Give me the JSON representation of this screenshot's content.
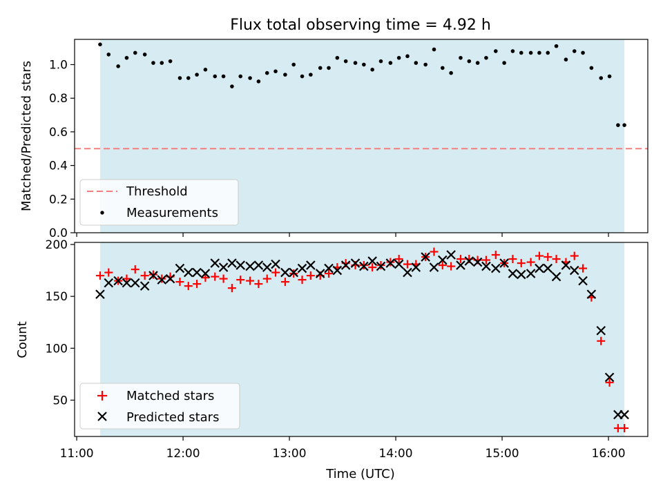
{
  "title": "Flux total observing time = 4.92 h",
  "chart_data": [
    {
      "type": "scatter",
      "ylabel": "Matched/Predicted stars",
      "ylim": [
        0,
        1.15
      ],
      "yticks": [
        "0.0",
        "0.2",
        "0.4",
        "0.6",
        "0.8",
        "1.0"
      ],
      "xlim": [
        10.98,
        16.37
      ],
      "shaded_span": [
        11.22,
        16.15
      ],
      "threshold": 0.5,
      "legend": {
        "position": "lower-left",
        "entries": [
          "Threshold",
          "Measurements"
        ]
      },
      "series": [
        {
          "name": "Measurements",
          "x": [
            11.22,
            11.3,
            11.39,
            11.47,
            11.55,
            11.64,
            11.72,
            11.8,
            11.88,
            11.97,
            12.05,
            12.13,
            12.21,
            12.3,
            12.38,
            12.46,
            12.54,
            12.63,
            12.71,
            12.79,
            12.87,
            12.96,
            13.04,
            13.12,
            13.2,
            13.29,
            13.37,
            13.45,
            13.53,
            13.62,
            13.7,
            13.78,
            13.86,
            13.95,
            14.03,
            14.11,
            14.19,
            14.28,
            14.36,
            14.44,
            14.52,
            14.61,
            14.69,
            14.77,
            14.85,
            14.94,
            15.02,
            15.1,
            15.18,
            15.27,
            15.35,
            15.43,
            15.51,
            15.6,
            15.68,
            15.76,
            15.84,
            15.93,
            16.01,
            16.09,
            16.15
          ],
          "y": [
            1.12,
            1.06,
            0.99,
            1.04,
            1.07,
            1.06,
            1.01,
            1.01,
            1.02,
            0.92,
            0.92,
            0.94,
            0.97,
            0.93,
            0.93,
            0.87,
            0.93,
            0.92,
            0.9,
            0.95,
            0.96,
            0.94,
            1.0,
            0.93,
            0.94,
            0.98,
            0.98,
            1.04,
            1.02,
            1.01,
            1.0,
            0.97,
            1.02,
            1.01,
            1.04,
            1.05,
            1.01,
            1.0,
            1.09,
            0.98,
            0.95,
            1.04,
            1.02,
            1.01,
            1.04,
            1.08,
            1.01,
            1.08,
            1.07,
            1.07,
            1.07,
            1.07,
            1.11,
            1.03,
            1.08,
            1.07,
            0.98,
            0.92,
            0.93,
            0.64,
            0.64
          ]
        }
      ]
    },
    {
      "type": "scatter",
      "ylabel": "Count",
      "xlabel": "Time (UTC)",
      "ylim": [
        15,
        202
      ],
      "yticks": [
        "50",
        "100",
        "150",
        "200"
      ],
      "xlim": [
        10.98,
        16.37
      ],
      "xticks": [
        "11:00",
        "12:00",
        "13:00",
        "14:00",
        "15:00",
        "16:00"
      ],
      "shaded_span": [
        11.22,
        16.15
      ],
      "legend": {
        "position": "lower-left",
        "entries": [
          "Matched stars",
          "Predicted stars"
        ]
      },
      "series": [
        {
          "name": "Matched stars",
          "marker": "plus",
          "x": [
            11.22,
            11.3,
            11.39,
            11.47,
            11.55,
            11.64,
            11.72,
            11.8,
            11.88,
            11.97,
            12.05,
            12.13,
            12.21,
            12.3,
            12.38,
            12.46,
            12.54,
            12.63,
            12.71,
            12.79,
            12.87,
            12.96,
            13.04,
            13.12,
            13.2,
            13.29,
            13.37,
            13.45,
            13.53,
            13.62,
            13.7,
            13.78,
            13.86,
            13.95,
            14.03,
            14.11,
            14.19,
            14.28,
            14.36,
            14.44,
            14.52,
            14.61,
            14.69,
            14.77,
            14.85,
            14.94,
            15.02,
            15.1,
            15.18,
            15.27,
            15.35,
            15.43,
            15.51,
            15.6,
            15.68,
            15.76,
            15.84,
            15.93,
            16.01,
            16.09,
            16.15
          ],
          "y": [
            170,
            173,
            165,
            167,
            176,
            170,
            171,
            167,
            169,
            164,
            160,
            162,
            168,
            169,
            167,
            158,
            166,
            165,
            162,
            167,
            173,
            164,
            172,
            166,
            170,
            170,
            172,
            178,
            182,
            180,
            180,
            178,
            180,
            183,
            186,
            181,
            181,
            188,
            193,
            180,
            179,
            186,
            186,
            185,
            185,
            190,
            182,
            186,
            182,
            183,
            189,
            188,
            186,
            183,
            189,
            177,
            149,
            107,
            67,
            23,
            23
          ]
        },
        {
          "name": "Predicted stars",
          "marker": "x",
          "x": [
            11.22,
            11.3,
            11.39,
            11.47,
            11.55,
            11.64,
            11.72,
            11.8,
            11.88,
            11.97,
            12.05,
            12.13,
            12.21,
            12.3,
            12.38,
            12.46,
            12.54,
            12.63,
            12.71,
            12.79,
            12.87,
            12.96,
            13.04,
            13.12,
            13.2,
            13.29,
            13.37,
            13.45,
            13.53,
            13.62,
            13.7,
            13.78,
            13.86,
            13.95,
            14.03,
            14.11,
            14.19,
            14.28,
            14.36,
            14.44,
            14.52,
            14.61,
            14.69,
            14.77,
            14.85,
            14.94,
            15.02,
            15.1,
            15.18,
            15.27,
            15.35,
            15.43,
            15.51,
            15.6,
            15.68,
            15.76,
            15.84,
            15.93,
            16.01,
            16.09,
            16.15
          ],
          "y": [
            152,
            163,
            165,
            163,
            163,
            160,
            170,
            166,
            167,
            177,
            173,
            173,
            172,
            182,
            178,
            182,
            180,
            179,
            180,
            178,
            181,
            173,
            173,
            177,
            180,
            172,
            177,
            175,
            180,
            182,
            179,
            184,
            179,
            182,
            181,
            173,
            178,
            188,
            178,
            185,
            190,
            180,
            184,
            183,
            179,
            177,
            182,
            172,
            171,
            172,
            177,
            177,
            169,
            180,
            175,
            165,
            152,
            117,
            72,
            36,
            36
          ]
        }
      ]
    }
  ]
}
